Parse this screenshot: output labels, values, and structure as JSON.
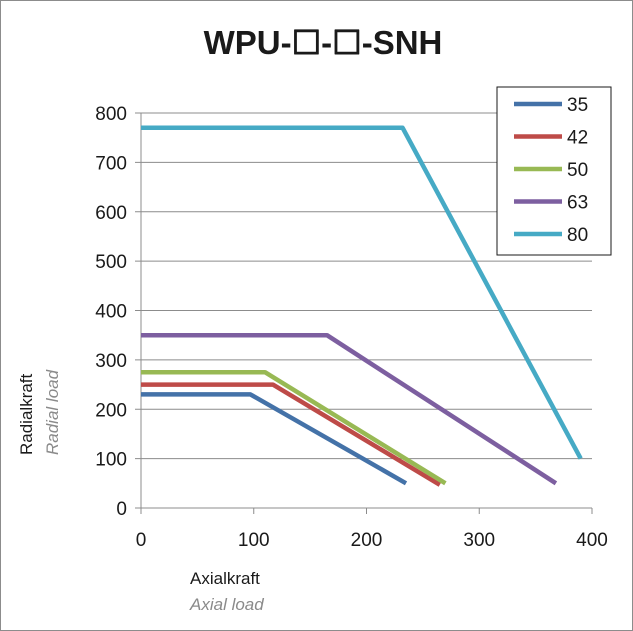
{
  "chart_data": {
    "type": "line",
    "title": "WPU-☐-☐-SNH",
    "xlabel": "Axialkraft",
    "xlabel_sub": "Axial load",
    "ylabel": "Radialkraft",
    "ylabel_sub": "Radial load",
    "xlim": [
      0,
      400
    ],
    "ylim": [
      0,
      800
    ],
    "xticks": [
      0,
      100,
      200,
      300,
      400
    ],
    "yticks": [
      0,
      100,
      200,
      300,
      400,
      500,
      600,
      700,
      800
    ],
    "grid": "horizontal",
    "legend_position": "top-right",
    "series": [
      {
        "name": "35",
        "color": "#4472a8",
        "points": [
          [
            0,
            230
          ],
          [
            97,
            230
          ],
          [
            235,
            50
          ]
        ]
      },
      {
        "name": "42",
        "color": "#be4b48",
        "points": [
          [
            0,
            250
          ],
          [
            117,
            250
          ],
          [
            265,
            47
          ]
        ]
      },
      {
        "name": "50",
        "color": "#98b954",
        "points": [
          [
            0,
            275
          ],
          [
            110,
            275
          ],
          [
            270,
            50
          ]
        ]
      },
      {
        "name": "63",
        "color": "#7d5fa0",
        "points": [
          [
            0,
            350
          ],
          [
            165,
            350
          ],
          [
            368,
            50
          ]
        ]
      },
      {
        "name": "80",
        "color": "#46aac5",
        "points": [
          [
            0,
            770
          ],
          [
            232,
            770
          ],
          [
            390,
            100
          ]
        ]
      }
    ]
  }
}
